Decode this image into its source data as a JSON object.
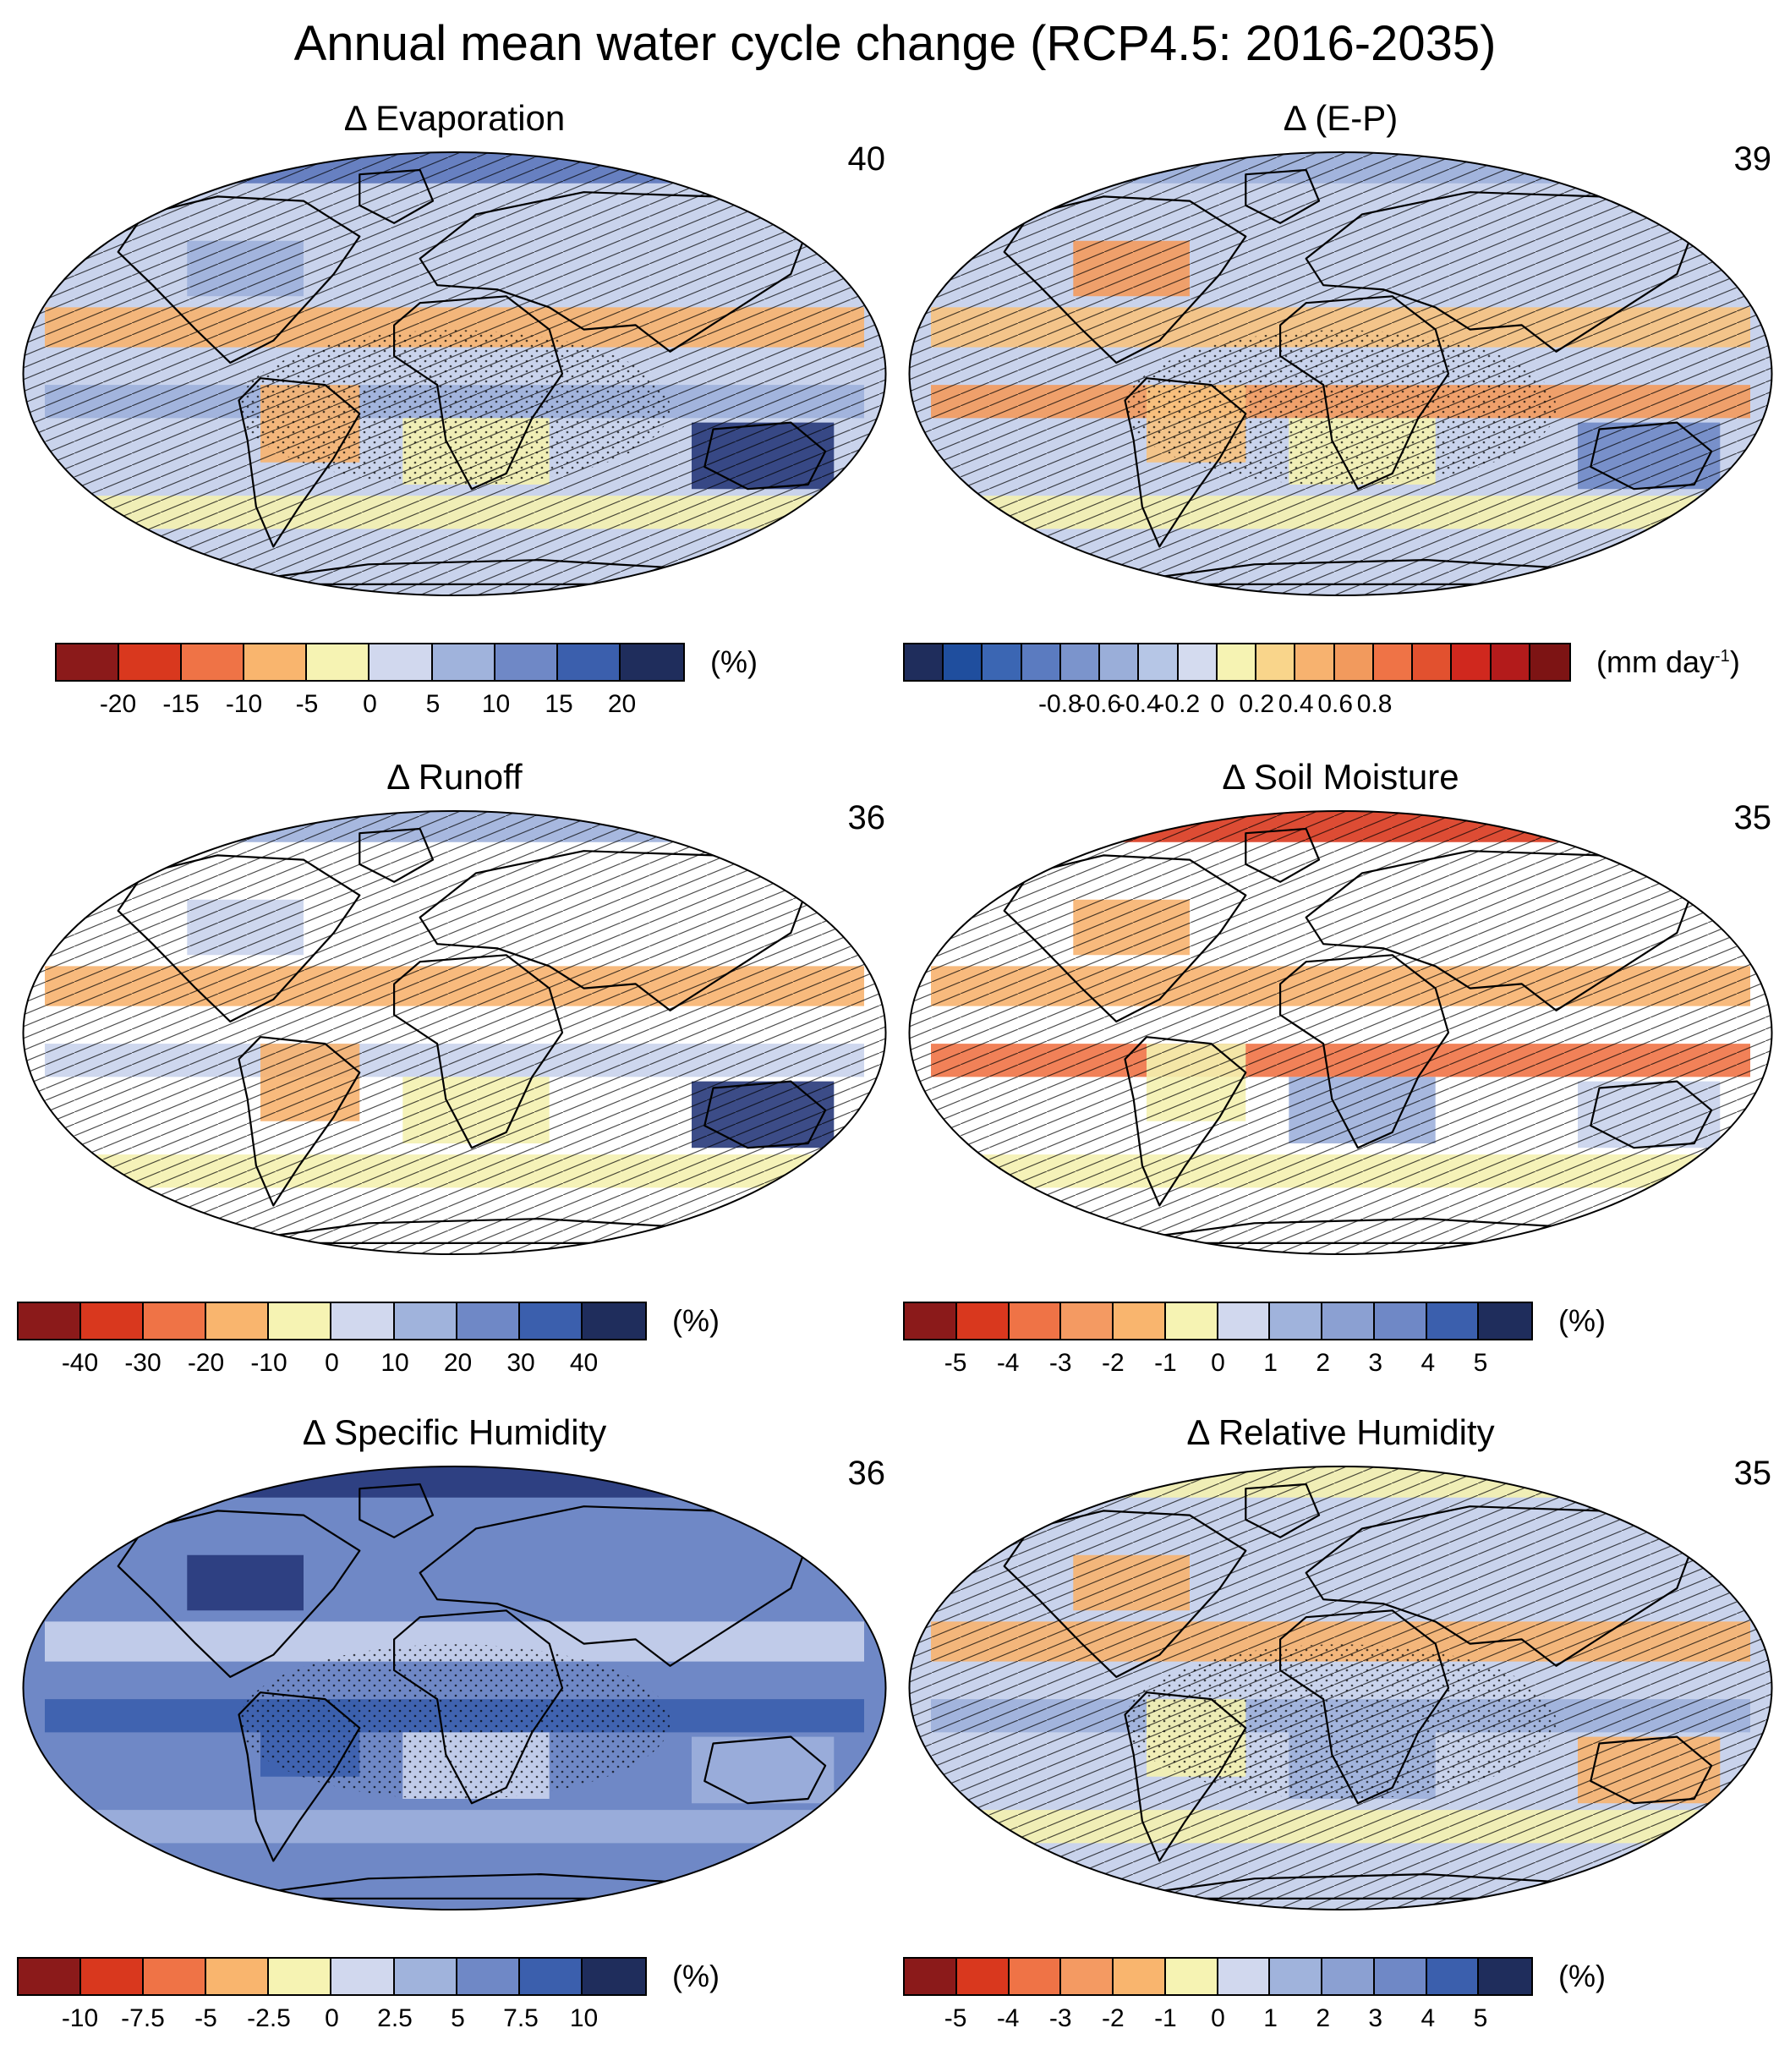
{
  "title": "Annual mean water cycle change (RCP4.5: 2016-2035)",
  "panels": [
    {
      "id": "evaporation",
      "title": "Δ Evaporation",
      "count": "40",
      "base_color": "#c9d3ec",
      "accents": [
        [
          "#f4f1b0",
          "#f7b26f"
        ],
        [
          "#9db0db",
          "#5c77bd",
          "#27397a"
        ]
      ],
      "hatch": true,
      "stipple": true,
      "colorbar": {
        "colors": [
          "#8b1a1a",
          "#d9381e",
          "#ef7346",
          "#f9b56e",
          "#f6f3b3",
          "#d1d8ee",
          "#a0b3dc",
          "#6f88c6",
          "#3b5fad",
          "#1f2d5c"
        ],
        "ticks": [
          "-20",
          "-15",
          "-10",
          "-5",
          "0",
          "5",
          "10",
          "15",
          "20"
        ],
        "unit": "(%)",
        "unit_sup": ""
      }
    },
    {
      "id": "e-p",
      "title": "Δ (E-P)",
      "count": "39",
      "base_color": "#c9d3ec",
      "accents": [
        [
          "#f4f1b0",
          "#f7c27f",
          "#f39a5d"
        ],
        [
          "#9db0db",
          "#6f88c6"
        ]
      ],
      "hatch": true,
      "stipple": true,
      "colorbar": {
        "colors": [
          "#1f2d5c",
          "#1f4e9e",
          "#3b66b3",
          "#5b7bc0",
          "#7b94cc",
          "#9aaed9",
          "#b6c6e6",
          "#d4dbef",
          "#f6f3b3",
          "#f9d58b",
          "#f7b26f",
          "#f29a5d",
          "#ef7346",
          "#e2512f",
          "#d0281e",
          "#b31b1b",
          "#7d1414"
        ],
        "ticks": [
          "-0.8",
          "-0.6",
          "-0.4",
          "-0.2",
          "0",
          "0.2",
          "0.4",
          "0.6",
          "0.8"
        ],
        "unit": "(mm day",
        "unit_sup": "-1"
      }
    },
    {
      "id": "runoff",
      "title": "Δ Runoff",
      "count": "36",
      "base_color": "#ffffff",
      "accents": [
        [
          "#f4f1b0",
          "#f7b26f"
        ],
        [
          "#c9d3ec",
          "#9db0db",
          "#27397a"
        ]
      ],
      "hatch": true,
      "stipple": false,
      "colorbar": {
        "colors": [
          "#8b1a1a",
          "#d9381e",
          "#ef7346",
          "#f9b56e",
          "#f6f3b3",
          "#d1d8ee",
          "#a0b3dc",
          "#6f88c6",
          "#3b5fad",
          "#1f2d5c"
        ],
        "ticks": [
          "-40",
          "-30",
          "-20",
          "-10",
          "0",
          "10",
          "20",
          "30",
          "40"
        ],
        "unit": "(%)",
        "unit_sup": ""
      }
    },
    {
      "id": "soil-moisture",
      "title": "Δ Soil Moisture",
      "count": "35",
      "base_color": "#ffffff",
      "accents": [
        [
          "#f4f1b0",
          "#f7b26f",
          "#ef7346",
          "#d9381e"
        ],
        [
          "#c9d3ec",
          "#9db0db"
        ]
      ],
      "hatch": true,
      "stipple": false,
      "colorbar": {
        "colors": [
          "#8b1a1a",
          "#d9381e",
          "#ef7346",
          "#f49a62",
          "#f9b56e",
          "#f6f3b3",
          "#d1d8ee",
          "#a0b3dc",
          "#8ba0d2",
          "#6f88c6",
          "#3b5fad",
          "#1f2d5c"
        ],
        "ticks": [
          "-5",
          "-4",
          "-3",
          "-2",
          "-1",
          "0",
          "1",
          "2",
          "3",
          "4",
          "5"
        ],
        "unit": "(%)",
        "unit_sup": ""
      }
    },
    {
      "id": "specific-humidity",
      "title": "Δ Specific Humidity",
      "count": "36",
      "base_color": "#6f88c6",
      "accents": [
        [
          "#9db0db",
          "#c9d3ec"
        ],
        [
          "#3b5fad",
          "#27397a"
        ]
      ],
      "hatch": false,
      "stipple": true,
      "colorbar": {
        "colors": [
          "#8b1a1a",
          "#d9381e",
          "#ef7346",
          "#f9b56e",
          "#f6f3b3",
          "#d1d8ee",
          "#a0b3dc",
          "#6f88c6",
          "#3b5fad",
          "#1f2d5c"
        ],
        "ticks": [
          "-10",
          "-7.5",
          "-5",
          "-2.5",
          "0",
          "2.5",
          "5",
          "7.5",
          "10"
        ],
        "unit": "(%)",
        "unit_sup": ""
      }
    },
    {
      "id": "relative-humidity",
      "title": "Δ Relative Humidity",
      "count": "35",
      "base_color": "#c9d3ec",
      "accents": [
        [
          "#f4f1b0",
          "#f7b26f"
        ],
        [
          "#9db0db"
        ]
      ],
      "hatch": true,
      "stipple": true,
      "colorbar": {
        "colors": [
          "#8b1a1a",
          "#d9381e",
          "#ef7346",
          "#f49a62",
          "#f9b56e",
          "#f6f3b3",
          "#d1d8ee",
          "#a0b3dc",
          "#8ba0d2",
          "#6f88c6",
          "#3b5fad",
          "#1f2d5c"
        ],
        "ticks": [
          "-5",
          "-4",
          "-3",
          "-2",
          "-1",
          "0",
          "1",
          "2",
          "3",
          "4",
          "5"
        ],
        "unit": "(%)",
        "unit_sup": ""
      }
    }
  ]
}
